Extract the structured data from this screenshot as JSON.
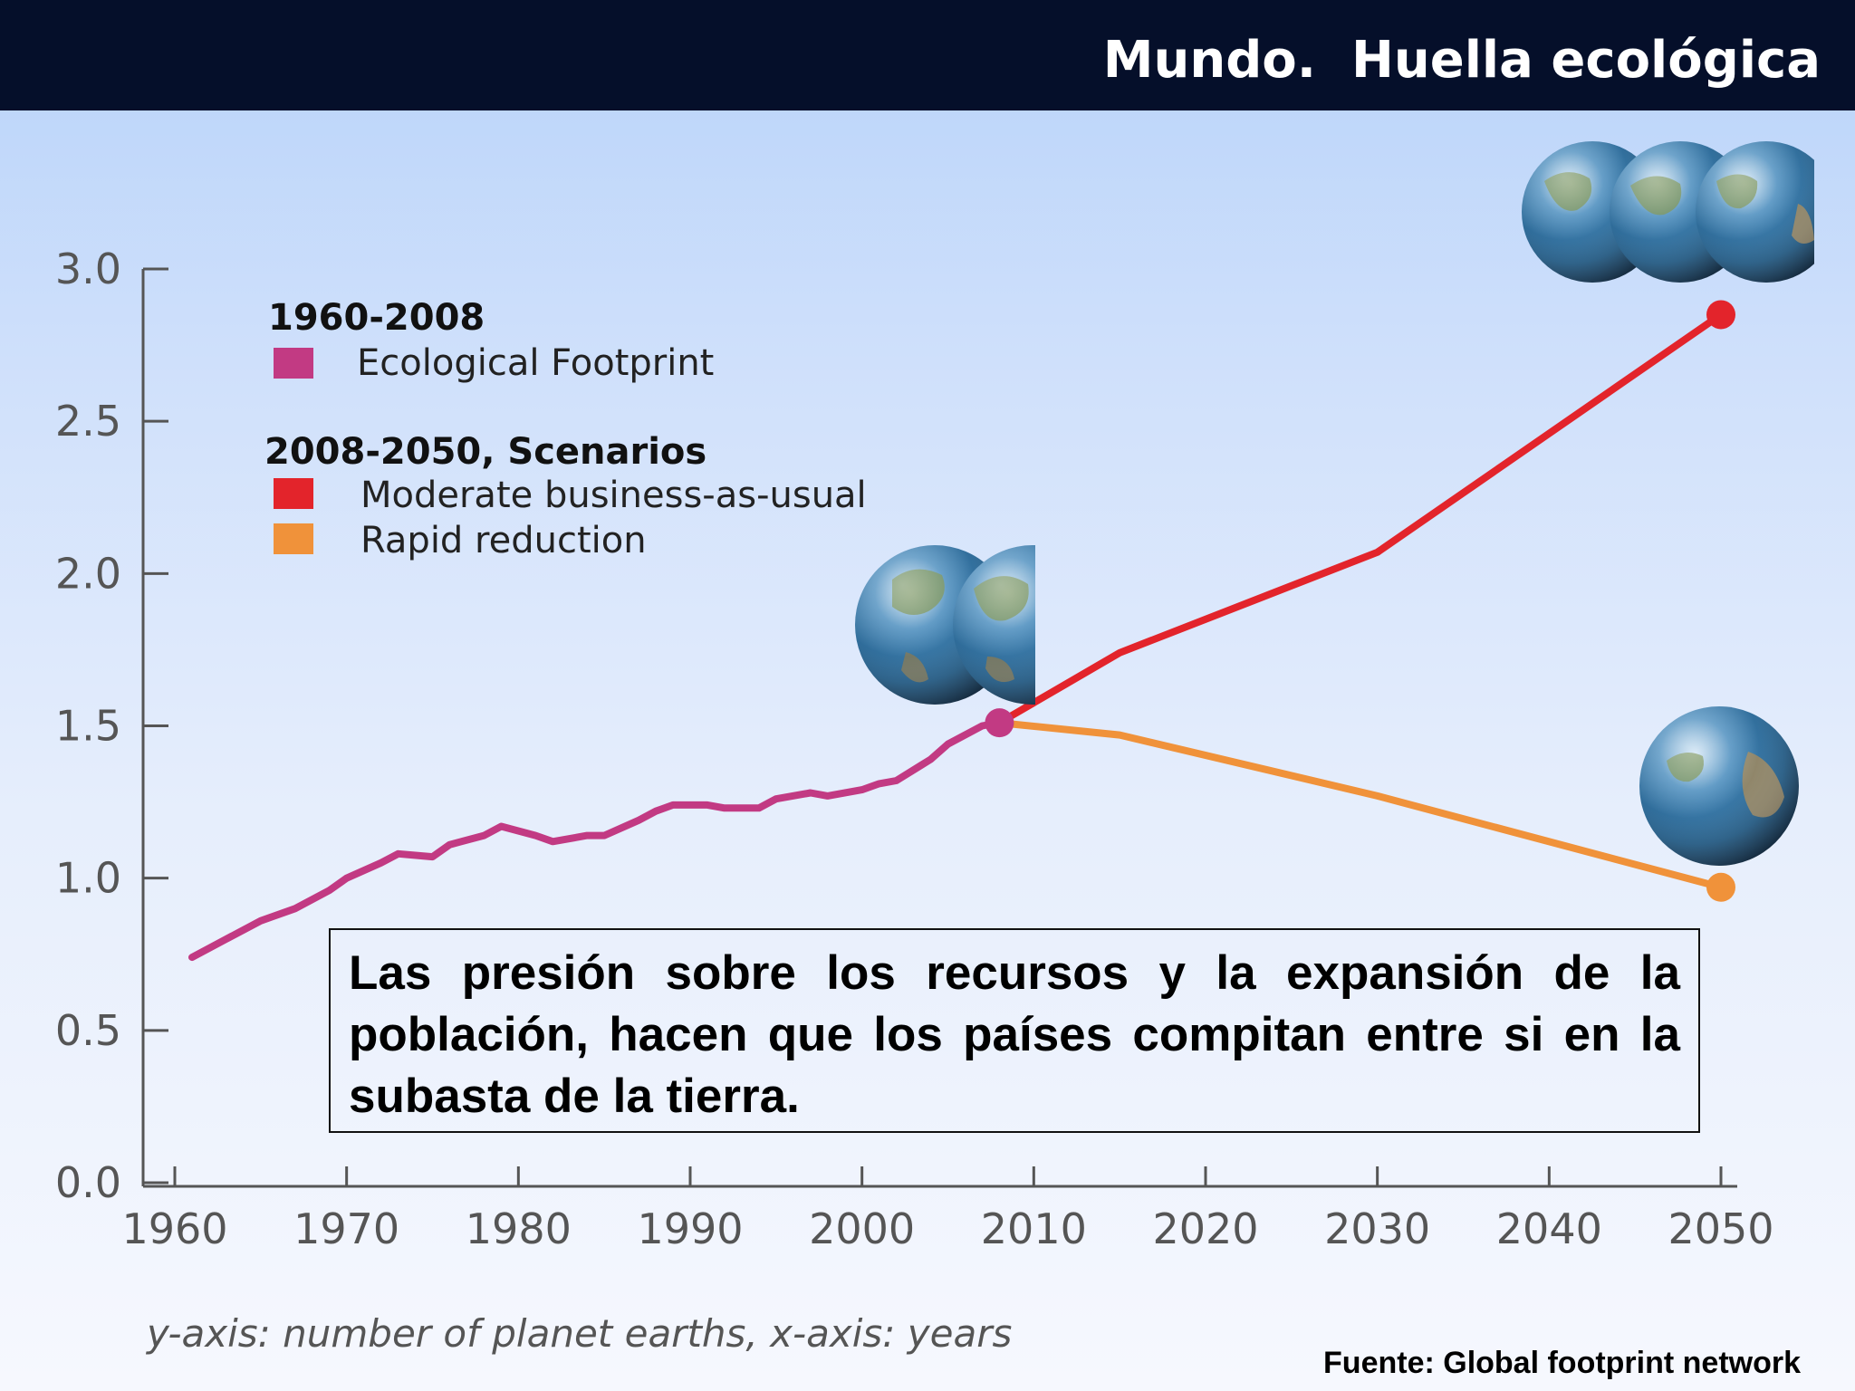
{
  "header": {
    "title": "Mundo.  Huella ecológica"
  },
  "chart_data": {
    "type": "line",
    "xlim": [
      1960,
      2050
    ],
    "ylim": [
      0,
      3.0
    ],
    "x_ticks": [
      "1960",
      "1970",
      "1980",
      "1990",
      "2000",
      "2010",
      "2020",
      "2030",
      "2040",
      "2050"
    ],
    "y_ticks": [
      "0.0",
      "0.5",
      "1.0",
      "1.5",
      "2.0",
      "2.5",
      "3.0"
    ],
    "grid": false,
    "legend_position": "top-left",
    "legend": {
      "historical_heading": "1960-2008",
      "scenarios_heading": "2008-2050, Scenarios"
    },
    "series": [
      {
        "name": "Ecological Footprint",
        "color": "#c23a83",
        "x": [
          1961,
          1963,
          1965,
          1967,
          1969,
          1970,
          1972,
          1973,
          1975,
          1976,
          1978,
          1979,
          1981,
          1982,
          1984,
          1985,
          1987,
          1988,
          1989,
          1991,
          1992,
          1994,
          1995,
          1997,
          1998,
          2000,
          2001,
          2002,
          2004,
          2005,
          2007,
          2008
        ],
        "y": [
          0.74,
          0.8,
          0.86,
          0.9,
          0.96,
          1.0,
          1.05,
          1.08,
          1.07,
          1.11,
          1.14,
          1.17,
          1.14,
          1.12,
          1.14,
          1.14,
          1.19,
          1.22,
          1.24,
          1.24,
          1.23,
          1.23,
          1.26,
          1.28,
          1.27,
          1.29,
          1.31,
          1.32,
          1.39,
          1.44,
          1.5,
          1.51
        ]
      },
      {
        "name": "Moderate business-as-usual",
        "color": "#e3242b",
        "x": [
          2008,
          2015,
          2030,
          2050
        ],
        "y": [
          1.51,
          1.74,
          2.07,
          2.85
        ]
      },
      {
        "name": "Rapid reduction",
        "color": "#f0923a",
        "x": [
          2008,
          2015,
          2030,
          2050
        ],
        "y": [
          1.51,
          1.47,
          1.27,
          0.97
        ]
      }
    ],
    "annotations": [
      {
        "kind": "earth-globes",
        "count": 2,
        "near_x": 2008
      },
      {
        "kind": "earth-globes",
        "count": 3,
        "near_x": 2050
      },
      {
        "kind": "earth-globes",
        "count": 1,
        "near_x": 2050
      }
    ]
  },
  "note": {
    "text": "Las presión sobre los recursos y la expansión de la población, hacen que los países compitan entre si en la subasta de la tierra."
  },
  "axis_caption": "y-axis: number of planet earths, x-axis: years",
  "source": "Fuente: Global footprint network"
}
